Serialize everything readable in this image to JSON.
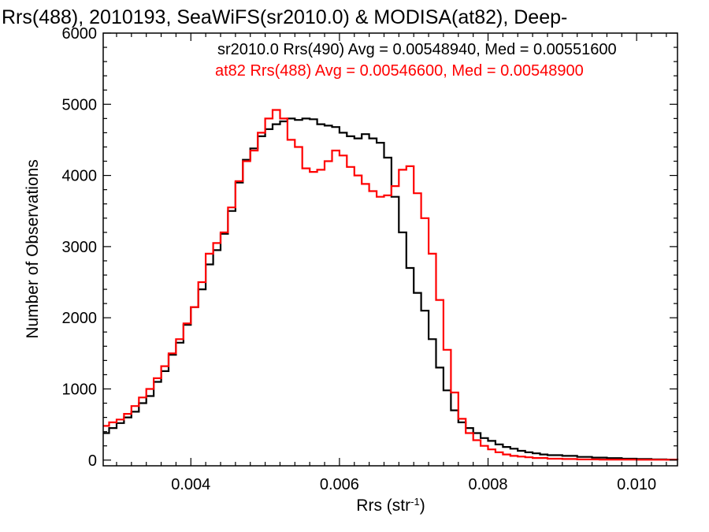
{
  "chart_data": {
    "type": "line",
    "title": "Rrs(488), 2010193, SeaWiFS(sr2010.0) & MODISA(at82), Deep-",
    "xlabel": "Rrs (str",
    "xlabel_superscript": "-1",
    "xlabel_suffix": ")",
    "ylabel": "Number of Observations",
    "xlim": [
      0.00282,
      0.01055
    ],
    "ylim": [
      -80,
      6000
    ],
    "xticks": [
      0.004,
      0.006,
      0.008,
      0.01
    ],
    "xtick_labels": [
      "0.004",
      "0.006",
      "0.008",
      "0.010"
    ],
    "yticks": [
      0,
      1000,
      2000,
      3000,
      4000,
      5000,
      6000
    ],
    "ytick_labels": [
      "0",
      "1000",
      "2000",
      "3000",
      "4000",
      "5000",
      "6000"
    ],
    "grid": false,
    "legend_position": "top-right",
    "series": [
      {
        "name": "sr2010.0 Rrs(490) Avg = 0.00548940, Med = 0.00551600",
        "color": "#000000",
        "points": [
          [
            0.00282,
            380
          ],
          [
            0.0029,
            450
          ],
          [
            0.003,
            520
          ],
          [
            0.0031,
            600
          ],
          [
            0.0032,
            680
          ],
          [
            0.0033,
            800
          ],
          [
            0.0034,
            900
          ],
          [
            0.0035,
            1100
          ],
          [
            0.0036,
            1250
          ],
          [
            0.0037,
            1480
          ],
          [
            0.0038,
            1650
          ],
          [
            0.0039,
            1900
          ],
          [
            0.004,
            2150
          ],
          [
            0.0041,
            2400
          ],
          [
            0.0042,
            2750
          ],
          [
            0.0043,
            2950
          ],
          [
            0.0044,
            3180
          ],
          [
            0.0045,
            3500
          ],
          [
            0.0046,
            3900
          ],
          [
            0.0047,
            4220
          ],
          [
            0.0048,
            4380
          ],
          [
            0.0049,
            4550
          ],
          [
            0.005,
            4650
          ],
          [
            0.0051,
            4720
          ],
          [
            0.0052,
            4760
          ],
          [
            0.0053,
            4800
          ],
          [
            0.0054,
            4780
          ],
          [
            0.0055,
            4800
          ],
          [
            0.0056,
            4790
          ],
          [
            0.0057,
            4720
          ],
          [
            0.0058,
            4700
          ],
          [
            0.0059,
            4680
          ],
          [
            0.006,
            4600
          ],
          [
            0.0061,
            4550
          ],
          [
            0.0062,
            4520
          ],
          [
            0.0063,
            4580
          ],
          [
            0.0064,
            4520
          ],
          [
            0.0065,
            4460
          ],
          [
            0.0066,
            4250
          ],
          [
            0.0067,
            3700
          ],
          [
            0.0068,
            3200
          ],
          [
            0.0069,
            2700
          ],
          [
            0.007,
            2350
          ],
          [
            0.0071,
            2100
          ],
          [
            0.0072,
            1700
          ],
          [
            0.0073,
            1300
          ],
          [
            0.0074,
            980
          ],
          [
            0.0075,
            700
          ],
          [
            0.0076,
            530
          ],
          [
            0.0077,
            450
          ],
          [
            0.0078,
            380
          ],
          [
            0.0079,
            310
          ],
          [
            0.008,
            270
          ],
          [
            0.0081,
            220
          ],
          [
            0.0082,
            185
          ],
          [
            0.0083,
            160
          ],
          [
            0.0084,
            130
          ],
          [
            0.0085,
            110
          ],
          [
            0.0086,
            95
          ],
          [
            0.0087,
            80
          ],
          [
            0.0088,
            70
          ],
          [
            0.009,
            60
          ],
          [
            0.0092,
            45
          ],
          [
            0.0094,
            35
          ],
          [
            0.0096,
            28
          ],
          [
            0.0098,
            20
          ],
          [
            0.01,
            15
          ],
          [
            0.0102,
            10
          ],
          [
            0.0104,
            8
          ],
          [
            0.01055,
            5
          ]
        ]
      },
      {
        "name": "at82 Rrs(488) Avg = 0.00546600, Med = 0.00548900",
        "color": "#ff0000",
        "points": [
          [
            0.00282,
            480
          ],
          [
            0.0029,
            530
          ],
          [
            0.003,
            570
          ],
          [
            0.0031,
            650
          ],
          [
            0.0032,
            760
          ],
          [
            0.0033,
            880
          ],
          [
            0.0034,
            1000
          ],
          [
            0.0035,
            1150
          ],
          [
            0.0036,
            1320
          ],
          [
            0.0037,
            1500
          ],
          [
            0.0038,
            1700
          ],
          [
            0.0039,
            1920
          ],
          [
            0.004,
            2150
          ],
          [
            0.0041,
            2500
          ],
          [
            0.0042,
            2900
          ],
          [
            0.0043,
            3050
          ],
          [
            0.0044,
            3200
          ],
          [
            0.0045,
            3550
          ],
          [
            0.0046,
            3920
          ],
          [
            0.0047,
            4200
          ],
          [
            0.0048,
            4350
          ],
          [
            0.0049,
            4600
          ],
          [
            0.005,
            4800
          ],
          [
            0.0051,
            4920
          ],
          [
            0.0052,
            4800
          ],
          [
            0.0053,
            4500
          ],
          [
            0.0054,
            4400
          ],
          [
            0.0055,
            4100
          ],
          [
            0.0056,
            4050
          ],
          [
            0.0057,
            4080
          ],
          [
            0.0058,
            4200
          ],
          [
            0.0059,
            4350
          ],
          [
            0.006,
            4280
          ],
          [
            0.0061,
            4120
          ],
          [
            0.0062,
            4000
          ],
          [
            0.0063,
            3880
          ],
          [
            0.0064,
            3780
          ],
          [
            0.0065,
            3700
          ],
          [
            0.0066,
            3720
          ],
          [
            0.0067,
            3850
          ],
          [
            0.0068,
            4080
          ],
          [
            0.0069,
            4130
          ],
          [
            0.007,
            3750
          ],
          [
            0.0071,
            3400
          ],
          [
            0.0072,
            2900
          ],
          [
            0.0073,
            2250
          ],
          [
            0.0074,
            1550
          ],
          [
            0.0075,
            950
          ],
          [
            0.0076,
            580
          ],
          [
            0.0077,
            380
          ],
          [
            0.0078,
            280
          ],
          [
            0.0079,
            200
          ],
          [
            0.008,
            150
          ],
          [
            0.0081,
            110
          ],
          [
            0.0082,
            80
          ],
          [
            0.0083,
            60
          ],
          [
            0.0084,
            50
          ],
          [
            0.0085,
            40
          ],
          [
            0.0086,
            30
          ],
          [
            0.0088,
            20
          ],
          [
            0.009,
            15
          ],
          [
            0.0092,
            10
          ],
          [
            0.0095,
            8
          ],
          [
            0.01,
            5
          ],
          [
            0.01055,
            3
          ]
        ]
      }
    ]
  }
}
